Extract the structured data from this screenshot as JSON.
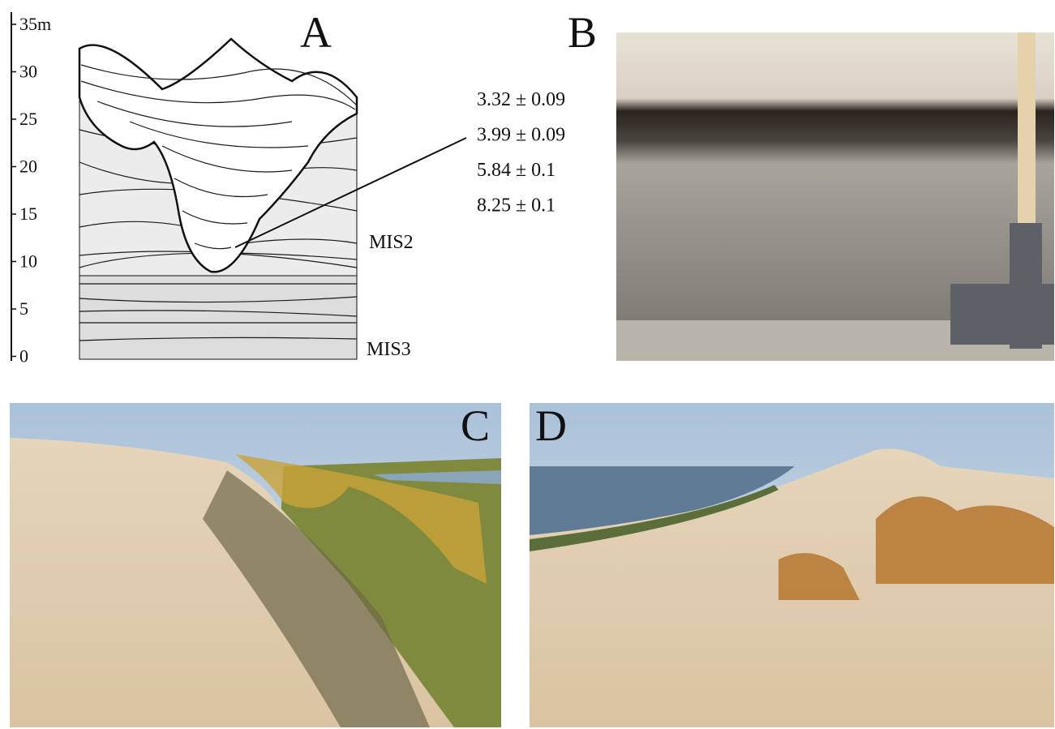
{
  "panel_a": {
    "label": "A",
    "scale_ticks": [
      "35m",
      "30",
      "25",
      "20",
      "15",
      "10",
      "5",
      "0"
    ],
    "ages": [
      "3.32 ± 0.09",
      "3.99 ± 0.09",
      "5.84 ± 0.1",
      "8.25 ± 0.1"
    ],
    "units": [
      "MIS2",
      "MIS3"
    ]
  },
  "panel_b": {
    "label": "B"
  },
  "panel_c": {
    "label": "C"
  },
  "panel_d": {
    "label": "D"
  }
}
